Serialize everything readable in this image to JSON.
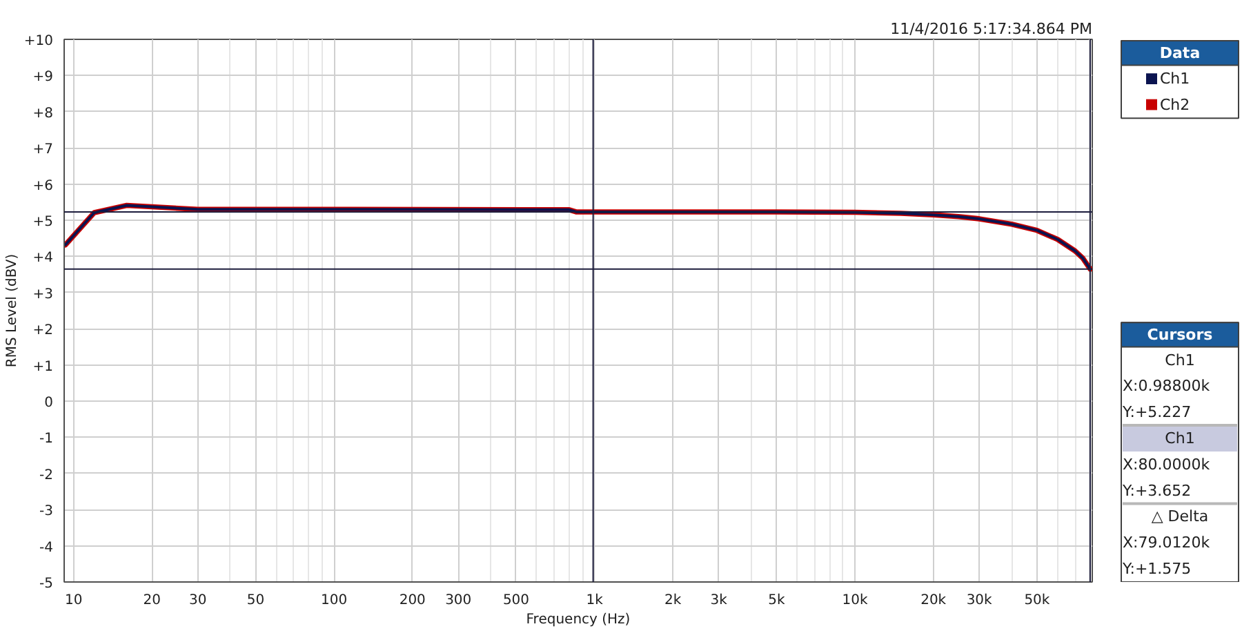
{
  "chart_data": {
    "type": "line",
    "annotations": [
      "11/4/2016 5:17:34.864 PM",
      "Cursors",
      "Ch1",
      "X:0.98800k",
      "Y:+5.227",
      "Ch1",
      "X:80.0000k",
      "Y:+3.652",
      "△ Delta",
      "X:79.0120k",
      "Y:+1.575"
    ],
    "xlabel": "Frequency (Hz)",
    "ylabel": "RMS Level (dBV)",
    "legend_title": "Data",
    "x": [
      9.3,
      12,
      16,
      30,
      100,
      800,
      850,
      1000,
      5000,
      10000,
      15000,
      20000,
      25000,
      30000,
      40000,
      50000,
      60000,
      70000,
      75000,
      80000
    ],
    "series": [
      {
        "name": "Ch1",
        "color": "#0b1450",
        "values": [
          4.32,
          5.21,
          5.41,
          5.3,
          5.3,
          5.29,
          5.23,
          5.23,
          5.23,
          5.22,
          5.19,
          5.15,
          5.1,
          5.04,
          4.89,
          4.72,
          4.47,
          4.15,
          3.95,
          3.65
        ]
      },
      {
        "name": "Ch2",
        "color": "#c80000",
        "values": [
          4.32,
          5.21,
          5.41,
          5.3,
          5.3,
          5.29,
          5.23,
          5.23,
          5.23,
          5.22,
          5.19,
          5.15,
          5.1,
          5.04,
          4.89,
          4.72,
          4.47,
          4.15,
          3.95,
          3.65
        ]
      }
    ],
    "log": "x",
    "xlim": [
      9.2,
      81500
    ],
    "ylim": [
      -5,
      10
    ],
    "xticks": [
      10,
      20,
      30,
      {
        "value": 40,
        "label": null
      },
      50,
      {
        "value": 60,
        "label": null
      },
      {
        "value": 70,
        "label": null
      },
      {
        "value": 80,
        "label": null
      },
      {
        "value": 90,
        "label": null
      },
      100,
      200,
      300,
      {
        "value": 400,
        "label": null
      },
      500,
      {
        "value": 600,
        "label": null
      },
      {
        "value": 700,
        "label": null
      },
      {
        "value": 800,
        "label": null
      },
      {
        "value": 900,
        "label": null
      },
      {
        "value": 1000,
        "label": "1k"
      },
      {
        "value": 2000,
        "label": "2k"
      },
      {
        "value": 3000,
        "label": "3k"
      },
      {
        "value": 4000,
        "label": null
      },
      {
        "value": 5000,
        "label": "5k"
      },
      {
        "value": 6000,
        "label": null
      },
      {
        "value": 7000,
        "label": null
      },
      {
        "value": 8000,
        "label": null
      },
      {
        "value": 9000,
        "label": null
      },
      {
        "value": 10000,
        "label": "10k"
      },
      {
        "value": 20000,
        "label": "20k"
      },
      {
        "value": 30000,
        "label": "30k"
      },
      {
        "value": 40000,
        "label": null
      },
      {
        "value": 50000,
        "label": "50k"
      },
      {
        "value": 60000,
        "label": null
      },
      {
        "value": 70000,
        "label": null
      },
      {
        "value": 80000,
        "label": null
      }
    ],
    "yticks": [
      {
        "value": 10,
        "label": "+10"
      },
      {
        "value": 9,
        "label": "+9"
      },
      {
        "value": 8,
        "label": "+8"
      },
      {
        "value": 7,
        "label": "+7"
      },
      {
        "value": 6,
        "label": "+6"
      },
      {
        "value": 5,
        "label": "+5"
      },
      {
        "value": 4,
        "label": "+4"
      },
      {
        "value": 3,
        "label": "+3"
      },
      {
        "value": 2,
        "label": "+2"
      },
      {
        "value": 1,
        "label": "+1"
      },
      0,
      -1,
      -2,
      -3,
      -4,
      -5
    ],
    "grid": true,
    "legend": "top right",
    "line_style": "solid",
    "ref_lines": [
      {
        "axis": "x",
        "value": 988,
        "color": "#1c1c3c"
      },
      {
        "axis": "y",
        "value": 5.227,
        "color": "#1c1c3c"
      },
      {
        "axis": "x",
        "value": 80000,
        "color": "#1c1c3c"
      },
      {
        "axis": "y",
        "value": 3.652,
        "color": "#1c1c3c"
      }
    ]
  }
}
